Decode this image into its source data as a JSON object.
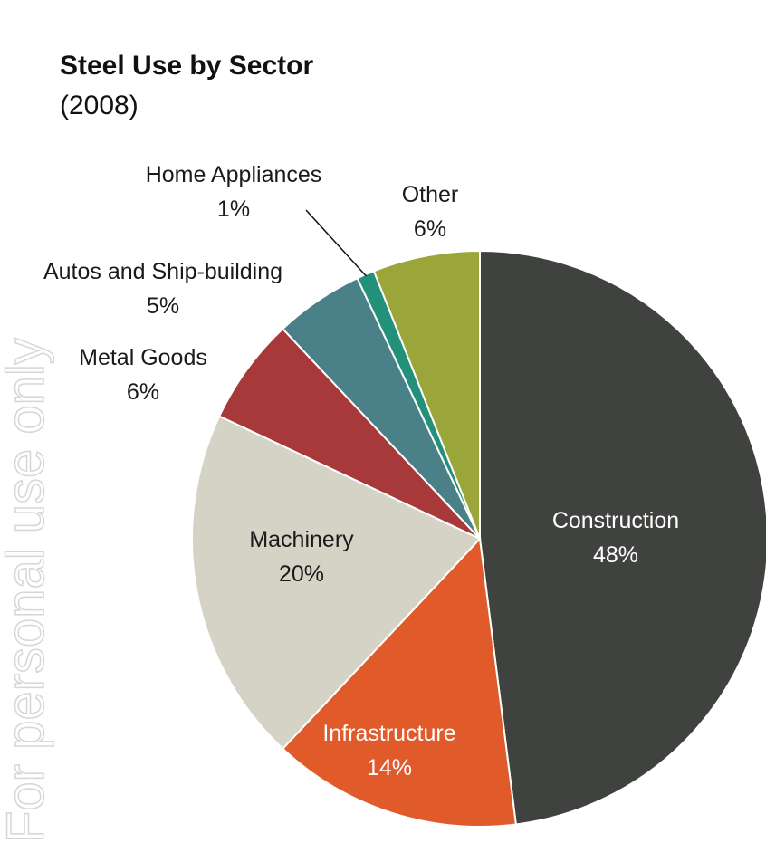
{
  "watermark": {
    "text": "For personal use only",
    "color": "#d6d6d6"
  },
  "chart_data": {
    "type": "pie",
    "title": "Steel Use by Sector",
    "subtitle": "(2008)",
    "start_angle_deg": 0,
    "direction": "clockwise",
    "unit": "%",
    "slices": [
      {
        "label": "Construction",
        "value": 48,
        "value_label": "48%",
        "color": "#3f423e",
        "label_color": "#ffffff",
        "label_placement": "inside"
      },
      {
        "label": "Infrastructure",
        "value": 14,
        "value_label": "14%",
        "color": "#e05a2a",
        "label_color": "#ffffff",
        "label_placement": "inside"
      },
      {
        "label": "Machinery",
        "value": 20,
        "value_label": "20%",
        "color": "#d5d2c6",
        "label_color": "#1a1a1a",
        "label_placement": "inside"
      },
      {
        "label": "Metal Goods",
        "value": 6,
        "value_label": "6%",
        "color": "#a8393a",
        "label_color": "#1a1a1a",
        "label_placement": "outside"
      },
      {
        "label": "Autos and Ship-building",
        "value": 5,
        "value_label": "5%",
        "color": "#4a8088",
        "label_color": "#1a1a1a",
        "label_placement": "outside"
      },
      {
        "label": "Home Appliances",
        "value": 1,
        "value_label": "1%",
        "color": "#23907a",
        "label_color": "#1a1a1a",
        "label_placement": "outside-leader"
      },
      {
        "label": "Other",
        "value": 6,
        "value_label": "6%",
        "color": "#9ba63a",
        "label_color": "#1a1a1a",
        "label_placement": "outside"
      }
    ]
  }
}
